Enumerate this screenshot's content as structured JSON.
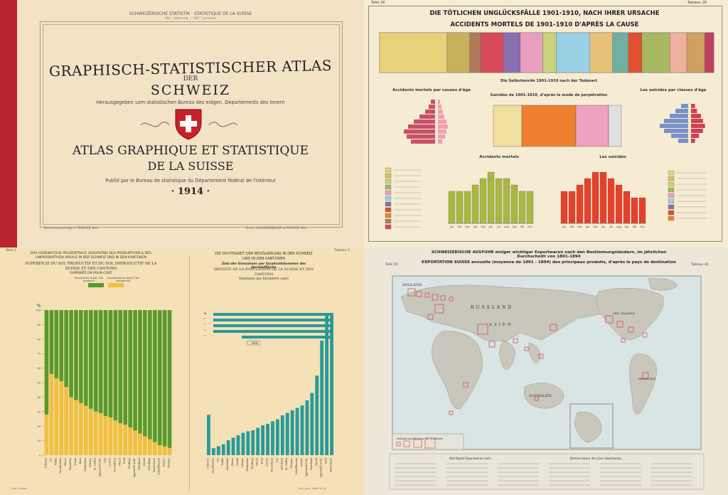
{
  "cover": {
    "header": "SCHWEIZERISCHE STATISTIK · STATISTIQUE DE LA SUISSE",
    "header_sub": "191. Lieferung — 191° Livraison",
    "title_de": "GRAPHISCH-STATISTISCHER ATLAS",
    "title_der": "DER",
    "title_schweiz": "SCHWEIZ",
    "subtitle_de": "Herausgegeben vom statistischen Bureau des eidgen. Departements des Innern",
    "title_fr_1": "ATLAS GRAPHIQUE ET STATISTIQUE",
    "title_fr_2": "DE LA SUISSE",
    "subtitle_fr": "Publié par le Bureau de statistique du Département fédéral de l'intérieur",
    "year": "· 1914 ·",
    "footer_left": "Kommissionsverlag: A. FRANCKE, Bern",
    "footer_right": "Druck: WOLFENSBERGER & PFEIFFER, Bern"
  },
  "accidents": {
    "tafel_left": "Tafel 26",
    "tafel_right": "Tableau 26",
    "title_de": "DIE TÖTLICHEN UNGLÜCKSFÄLLE 1901-1910, NACH IHRER URSACHE",
    "title_fr": "ACCIDENTS MORTELS DE 1901-1910 D'APRÈS LA CAUSE",
    "band_colors": [
      "#e8d27a",
      "#c9b15a",
      "#b07a5a",
      "#d84a5a",
      "#8a6fb0",
      "#e9a0c0",
      "#c8d37a",
      "#9ad0e4",
      "#e9c27a",
      "#6fb0a0",
      "#e05030",
      "#a8b860",
      "#f0b0a0",
      "#d0a060",
      "#c04060"
    ],
    "pyramid_left_title": "Accidents mortels par causes d'âge",
    "pyramid_right_title": "Les suicides par classes d'âge",
    "center_title_de": "Die Selbstmorde 1901-1910 nach der Todesart",
    "center_title_fr": "Suicides de 1901-1910, d'après le mode de perpétration",
    "center_colors": [
      "#f0e0a0",
      "#f08030",
      "#f0a0c0",
      "#e0e0e0"
    ],
    "months_left_title": "Accidents mortels",
    "months_right_title": "Les suicides",
    "months_left_values": [
      5,
      5,
      5,
      6,
      7,
      8,
      7,
      7,
      6,
      5,
      5
    ],
    "months_right_values": [
      5,
      5,
      6,
      7,
      8,
      8,
      7,
      6,
      5,
      4,
      4
    ],
    "legend_colors": [
      "#e8d27a",
      "#d8c060",
      "#c8d37a",
      "#a8b860",
      "#e9a0c0",
      "#9ad0e4",
      "#8a6fb0",
      "#e05030",
      "#f08030",
      "#b07a5a",
      "#d84a5a"
    ],
    "month_labels": [
      "Jan",
      "Feb",
      "Mrz",
      "Apr",
      "Mai",
      "Jun",
      "Jul",
      "Aug",
      "Sep",
      "Okt",
      "Nov"
    ]
  },
  "soil": {
    "tafel_left": "Tafel 3",
    "tafel_right": "Tableau 3",
    "left_title": "DAS OEDENSTEIGE PROZENTRACE VERHÄLTNIS DES PRODUKTIVEN & DES UNPRODUKTIVEN AREALS IN DER SCHWEIZ UND IN DEN KANTONEN",
    "left_title_fr": "SUPERFICIE DU SOL PRODUCTIF ET DU SOL IMPRODUCTIF DE LA SUISSE ET DES CANTONS",
    "left_title_fr2": "EXPRIMÉE EN POUR-CENT",
    "legend_productive": "Productives Areal / Sol productif",
    "legend_unproductive": "Unproduktives Areal / Sol improductif",
    "y_unit": "%",
    "right_title": "DIE DICHTIGKEIT DER BEVÖLKERUNG IN DER SCHWEIZ UND IN DEN KANTONEN",
    "right_title_2": "Zahl der Einwohner per Quadratkilometer der Gesamtfläche",
    "right_title_fr": "DENSITÉ DE LA POPULATION DE LA SUISSE ET DES CANTONS",
    "right_title_fr2": "Habitants par kilomètre carré",
    "box_label": "1900",
    "footer_left": "Stat. Bureau",
    "footer_right": "Lith. Anst. Hofer & Co."
  },
  "export": {
    "tafel_left": "Tafel 20",
    "tafel_right": "Tableau 20",
    "title_de": "SCHWEIZERISCHE AUSFUHR einiger wichtiger Exportwaren nach den Bestimmungsländern, im jährlichen Durchschnitt von 1891-1894",
    "title_fr": "EXPORTATION SUISSE annuelle (moyenne de 1891 - 1894) des principaux produits, d'après le pays de destination",
    "map_labels": {
      "england": "ENGLAND",
      "russland": "RUSSLAND",
      "asien": "ASIEN",
      "australien": "AUSTRALIEN",
      "brasilien": "BRASILIEN",
      "usa": "VER. STAATEN"
    },
    "squares_label": "Grössenverhältnisse der Quadrate",
    "table_title_left": "Wichtigste Exportwaren nach ...",
    "table_title_right": "Nomenclature des plus importantes ...",
    "colors": {
      "sea": "#d9e4e4",
      "land": "#c9c6bc",
      "square": "#d04050"
    }
  },
  "chart_data": [
    {
      "type": "bar",
      "title": "SUPERFICIE DU SOL PRODUCTIF ET DU SOL IMPRODUCTIF DE LA SUISSE ET DES CANTONS",
      "ylabel": "%",
      "ylim": [
        0,
        100
      ],
      "categories": [
        "Schweiz",
        "Uri",
        "Wallis",
        "Graubünden",
        "Glarus",
        "Obwalden",
        "Tessin",
        "Bern",
        "Nidwalden",
        "Schwyz",
        "St. Gallen",
        "Appenzell I.Rh.",
        "Zug",
        "Luzern",
        "Neuenburg",
        "Waadt",
        "Genf",
        "Freiburg",
        "Appenzell A.Rh.",
        "Solothurn",
        "Zürich",
        "Baselland",
        "Basel-Stadt",
        "Schaffhausen",
        "Aargau",
        "Thurgau"
      ],
      "series": [
        {
          "name": "Sol improductif",
          "values": [
            28,
            56,
            53,
            51,
            47,
            40,
            38,
            36,
            34,
            32,
            30,
            29,
            27,
            26,
            24,
            22,
            21,
            19,
            17,
            15,
            13,
            11,
            9,
            7,
            6,
            5
          ]
        },
        {
          "name": "Sol productif",
          "values": [
            72,
            44,
            47,
            49,
            53,
            60,
            62,
            64,
            66,
            68,
            70,
            71,
            73,
            74,
            76,
            78,
            79,
            81,
            83,
            85,
            87,
            89,
            91,
            93,
            94,
            95
          ]
        }
      ]
    },
    {
      "type": "bar",
      "title": "DENSITÉ DE LA POPULATION DE LA SUISSE ET DES CANTONS",
      "ylabel": "Habitants par kilomètre carré",
      "categories": [
        "Schweiz",
        "Graubünden",
        "Uri",
        "Wallis",
        "Obwalden",
        "Glarus",
        "Tessin",
        "Schwyz",
        "Nidwalden",
        "Freiburg",
        "Waadt",
        "Bern",
        "Luzern",
        "Neuenburg",
        "Zug",
        "Solothurn",
        "St. Gallen",
        "Thurgau",
        "Schaffhausen",
        "Aargau",
        "Appenzell I.Rh.",
        "Baselland",
        "Zürich",
        "Appenzell A.Rh.",
        "Genf",
        "Basel-Stadt"
      ],
      "values": [
        81,
        14,
        18,
        22,
        30,
        35,
        40,
        45,
        48,
        50,
        55,
        60,
        63,
        68,
        72,
        80,
        85,
        90,
        95,
        100,
        110,
        125,
        160,
        230,
        290,
        1000
      ]
    }
  ]
}
